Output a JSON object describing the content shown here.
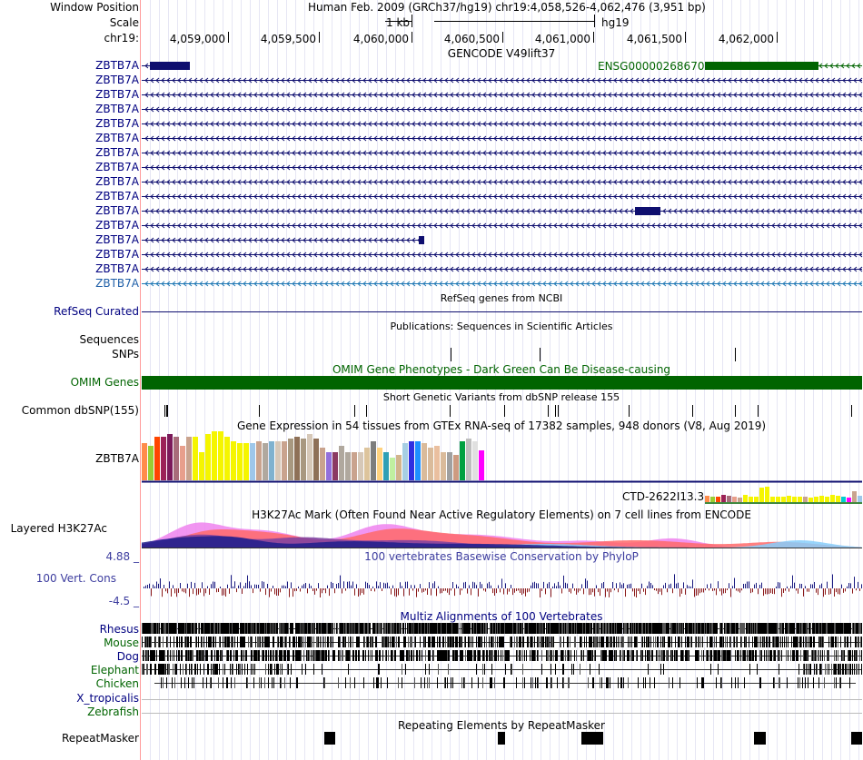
{
  "header": {
    "window_position_label": "Window Position",
    "scale_label": "Scale",
    "chrom_label": "chr19:",
    "assembly_position": "Human Feb. 2009 (GRCh37/hg19)   chr19:4,058,526-4,062,476 (3,951 bp)",
    "scale_value": "1 kb",
    "assembly_name": "hg19"
  },
  "ruler": {
    "ticks": [
      {
        "label": "4,059,000"
      },
      {
        "label": "4,059,500"
      },
      {
        "label": "4,060,000"
      },
      {
        "label": "4,060,500"
      },
      {
        "label": "4,061,000"
      },
      {
        "label": "4,061,500"
      },
      {
        "label": "4,062,000"
      }
    ]
  },
  "gencode": {
    "title": "GENCODE V49lift37",
    "gene_label": "ZBTB7A",
    "ensg_label": "ENSG00000268670",
    "transcript_count": 16
  },
  "refseq": {
    "title": "RefSeq genes from NCBI",
    "label": "RefSeq Curated"
  },
  "publications": {
    "title": "Publications: Sequences in Scientific Articles",
    "sequences_label": "Sequences",
    "snps_label": "SNPs"
  },
  "omim": {
    "label": "OMIM Genes",
    "title": "OMIM Gene Phenotypes - Dark Green Can Be Disease-causing"
  },
  "dbsnp": {
    "title": "Short Genetic Variants from dbSNP release 155",
    "label": "Common dbSNP(155)"
  },
  "gtex": {
    "title": "Gene Expression in 54 tissues from GTEx RNA-seq of 17382 samples, 948 donors (V8, Aug 2019)",
    "gene_label": "ZBTB7A",
    "second_gene_label": "CTD-2622I13.3",
    "values": [
      0.8,
      0.75,
      0.95,
      0.95,
      1.0,
      0.95,
      0.75,
      0.95,
      0.95,
      0.6,
      1.0,
      1.05,
      1.05,
      0.95,
      0.85,
      0.8,
      0.8,
      0.8,
      0.85,
      0.8,
      0.85,
      0.85,
      0.85,
      0.9,
      0.95,
      0.9,
      1.0,
      0.9,
      0.7,
      0.6,
      0.6,
      0.75,
      0.6,
      0.6,
      0.6,
      0.7,
      0.85,
      0.7,
      0.6,
      0.5,
      0.55,
      0.8,
      0.85,
      0.85,
      0.8,
      0.7,
      0.75,
      0.6,
      0.6,
      0.55,
      0.85,
      0.9,
      0.85,
      0.65
    ],
    "colors": [
      "#ff8c4b",
      "#9acd32",
      "#ff4500",
      "#9b2257",
      "#7b1a5a",
      "#a86d7a",
      "#e89f8c",
      "#c9a38e",
      "#f5f500",
      "#f5f500",
      "#f5f500",
      "#f5f500",
      "#f5f500",
      "#f5f500",
      "#f5f500",
      "#f5f500",
      "#f5f500",
      "#9ec7ea",
      "#c9a38e",
      "#b0a89e",
      "#7fb2cf",
      "#d6c8b8",
      "#c9a38e",
      "#a89880",
      "#8e7057",
      "#a89880",
      "#d6c8b8",
      "#8e7057",
      "#c9a38e",
      "#9370db",
      "#8b3a62",
      "#b0a89e",
      "#b0a89e",
      "#c9a38e",
      "#d6c8b8",
      "#ddc49c",
      "#7d7d7d",
      "#ffd27f",
      "#2f9fb5",
      "#c0f0a0",
      "#d2b48c",
      "#a6cee3",
      "#2f2fe0",
      "#1e90ff",
      "#dabb9b",
      "#dabb9b",
      "#eabf9f",
      "#dabb9b",
      "#a0a0a0",
      "#cd9b80",
      "#00a040",
      "#bebebe",
      "#e0e0e0",
      "#ff00ff"
    ],
    "second_values": [
      0.35,
      0.3,
      0.3,
      0.4,
      0.35,
      0.3,
      0.25,
      0.4,
      0.3,
      0.3,
      0.8,
      0.85,
      0.3,
      0.3,
      0.3,
      0.35,
      0.3,
      0.3,
      0.3,
      0.25,
      0.3,
      0.35,
      0.3,
      0.4,
      0.35,
      0.3,
      0.25,
      0.6,
      0.35,
      0.65
    ],
    "second_colors": [
      "#ff8c4b",
      "#9acd32",
      "#ff4500",
      "#9b2257",
      "#a86d7a",
      "#e89f8c",
      "#c9a38e",
      "#f5f500",
      "#f5f500",
      "#f5f500",
      "#f5f500",
      "#f5f500",
      "#f5f500",
      "#f5f500",
      "#f5f500",
      "#f5f500",
      "#f5f500",
      "#f5f500",
      "#c9a38e",
      "#f5f500",
      "#f5f500",
      "#f5f500",
      "#f5f500",
      "#f5f500",
      "#f5f500",
      "#00ced1",
      "#ff00ff",
      "#c9a38e",
      "#9ec7ea",
      "#eabf9f"
    ]
  },
  "h3k27ac": {
    "title": "H3K27Ac Mark (Often Found Near Active Regulatory Elements) on 7 cell lines from ENCODE",
    "label": "Layered H3K27Ac"
  },
  "phylop": {
    "title": "100 vertebrates Basewise Conservation by PhyloP",
    "label": "100 Vert. Cons",
    "max": "4.88 _",
    "min": "-4.5 _"
  },
  "multiz": {
    "title": "Multiz Alignments of 100 Vertebrates",
    "species": [
      {
        "name": "Rhesus",
        "color": "#000080"
      },
      {
        "name": "Mouse",
        "color": "#006400"
      },
      {
        "name": "Dog",
        "color": "#000080"
      },
      {
        "name": "Elephant",
        "color": "#006400"
      },
      {
        "name": "Chicken",
        "color": "#006400"
      },
      {
        "name": "X_tropicalis",
        "color": "#000080"
      },
      {
        "name": "Zebrafish",
        "color": "#006400"
      }
    ]
  },
  "repeatmasker": {
    "title": "Repeating Elements by RepeatMasker",
    "label": "RepeatMasker"
  },
  "colors": {
    "gencode": "#0e0e6f",
    "ensg": "#006400",
    "omim": "#006400",
    "accent_red_line": "#ff9b9b"
  }
}
